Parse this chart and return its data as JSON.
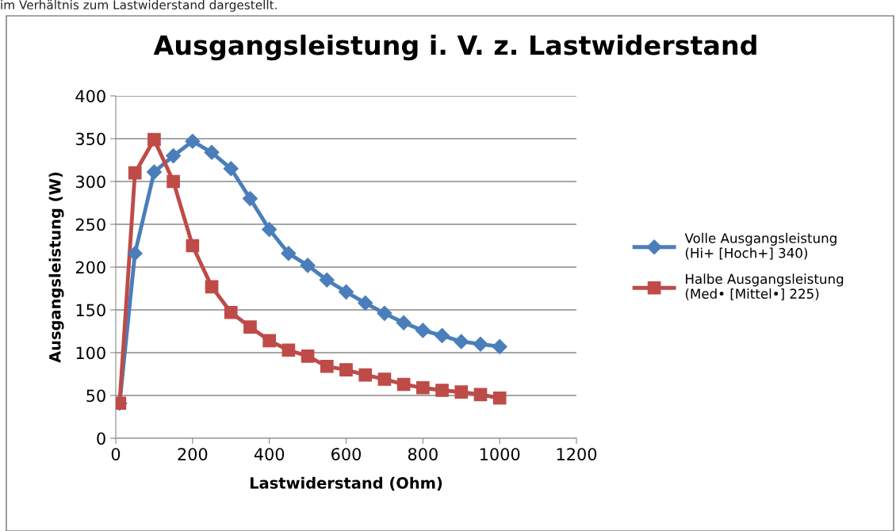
{
  "chart_data": {
    "type": "line",
    "title": "Ausgangsleistung i. V. z. Lastwiderstand",
    "xlabel": "Lastwiderstand (Ohm)",
    "ylabel": "Ausgangsleistung (W)",
    "annotations": [
      "im Verhältnis zum Lastwiderstand dargestellt."
    ],
    "x": [
      10,
      50,
      100,
      150,
      200,
      250,
      300,
      350,
      400,
      450,
      500,
      550,
      600,
      650,
      700,
      750,
      800,
      850,
      900,
      950,
      1000
    ],
    "series": [
      {
        "name": "Volle Ausgangsleistung\n(Hi+ [Hoch+] 340)",
        "color": "#4a7ebb",
        "marker": "diamond",
        "values": [
          41,
          216,
          311,
          330,
          347,
          334,
          315,
          280,
          244,
          216,
          202,
          185,
          171,
          158,
          146,
          135,
          126,
          120,
          113,
          110,
          107
        ]
      },
      {
        "name": "Halbe Ausgangsleistung\n(Med• [Mittel•] 225)",
        "color": "#be4b48",
        "marker": "square",
        "values": [
          41,
          310,
          349,
          300,
          225,
          177,
          147,
          130,
          114,
          103,
          96,
          84,
          80,
          74,
          69,
          63,
          59,
          56,
          54,
          51,
          47
        ]
      }
    ],
    "xlim": [
      0,
      1200
    ],
    "xticks": [
      0,
      200,
      400,
      600,
      800,
      1000,
      1200
    ],
    "ylim": [
      0,
      400
    ],
    "yticks": [
      0,
      50,
      100,
      150,
      200,
      250,
      300,
      350,
      400
    ],
    "grid": "y",
    "legend": "right",
    "line_style": "solid"
  }
}
